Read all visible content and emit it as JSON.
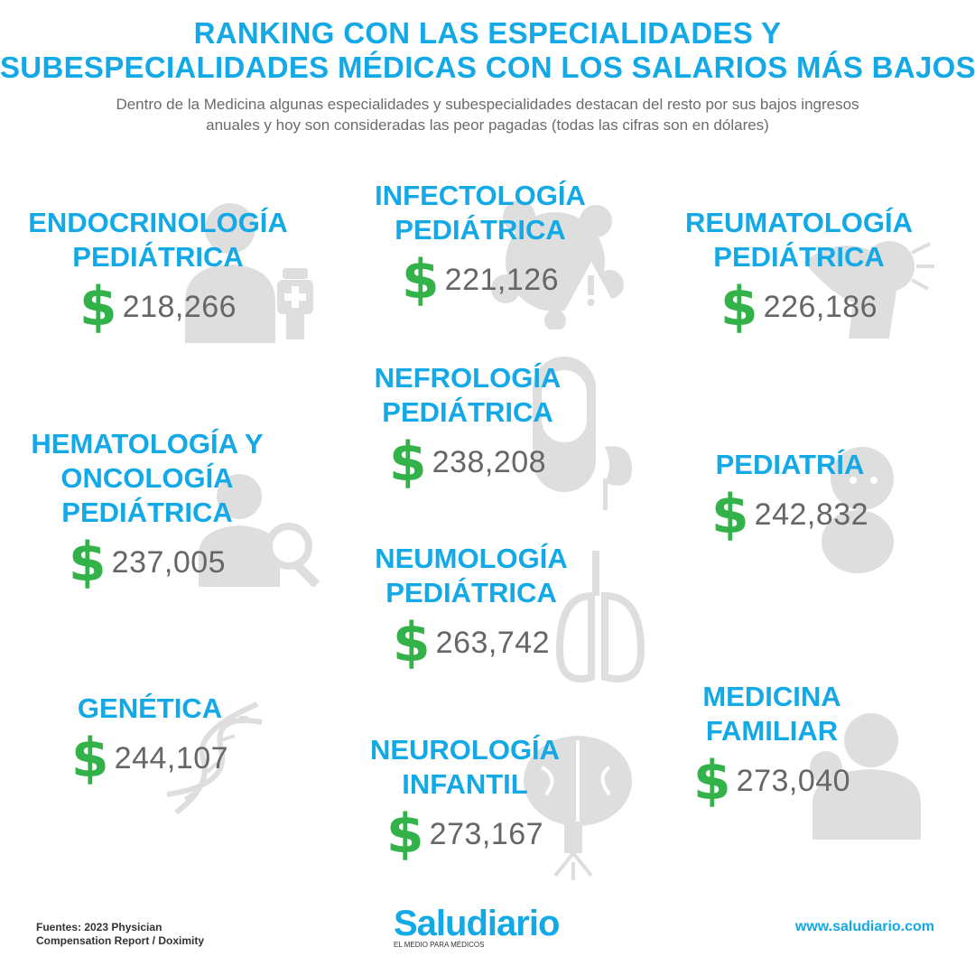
{
  "title_lines": [
    "RANKING CON LAS ESPECIALIDADES Y",
    "SUBESPECIALIDADES MÉDICAS CON LOS SALARIOS MÁS BAJOS"
  ],
  "subtitle_lines": [
    "Dentro de la Medicina algunas especialidades y subespecialidades destacan del resto por sus bajos ingresos",
    "anuales y hoy son consideradas las peor pagadas (todas las cifras son en dólares)"
  ],
  "currency_symbol": "$",
  "items": [
    {
      "lines": [
        "ENDOCRINOLOGÍA",
        "PEDIÁTRICA"
      ],
      "value": "218,266",
      "icon": "doctor-bottle-icon"
    },
    {
      "lines": [
        "INFECTOLOGÍA",
        "PEDIÁTRICA"
      ],
      "value": "221,126",
      "icon": "virus-warning-icon"
    },
    {
      "lines": [
        "REUMATOLOGÍA",
        "PEDIÁTRICA"
      ],
      "value": "226,186",
      "icon": "joint-pain-icon"
    },
    {
      "lines": [
        "NEFROLOGÍA",
        "PEDIÁTRICA"
      ],
      "value": "238,208",
      "icon": "kidney-icon"
    },
    {
      "lines": [
        "HEMATOLOGÍA Y",
        "ONCOLOGÍA",
        "PEDIÁTRICA"
      ],
      "value": "237,005",
      "icon": "doctor-magnifier-icon"
    },
    {
      "lines": [
        "PEDIATRÍA"
      ],
      "value": "242,832",
      "icon": "baby-icon"
    },
    {
      "lines": [
        "NEUMOLOGÍA",
        "PEDIÁTRICA"
      ],
      "value": "263,742",
      "icon": "lungs-icon"
    },
    {
      "lines": [
        "GENÉTICA"
      ],
      "value": "244,107",
      "icon": "dna-icon"
    },
    {
      "lines": [
        "NEUROLOGÍA",
        "INFANTIL"
      ],
      "value": "273,167",
      "icon": "brain-icon"
    },
    {
      "lines": [
        "MEDICINA",
        "FAMILIAR"
      ],
      "value": "273,040",
      "icon": "family-doctor-icon"
    }
  ],
  "footer": {
    "sources_lines": [
      "Fuentes: 2023 Physician",
      "Compensation Report / Doximity"
    ],
    "logo_word": "Saludiario",
    "logo_tagline": "EL MEDIO PARA MÉDICOS",
    "website": "www.saludiario.com"
  },
  "colors": {
    "title": "#12a9e6",
    "dollar": "#34b24a",
    "amount": "#666666",
    "icon": "#d9d9d9"
  }
}
